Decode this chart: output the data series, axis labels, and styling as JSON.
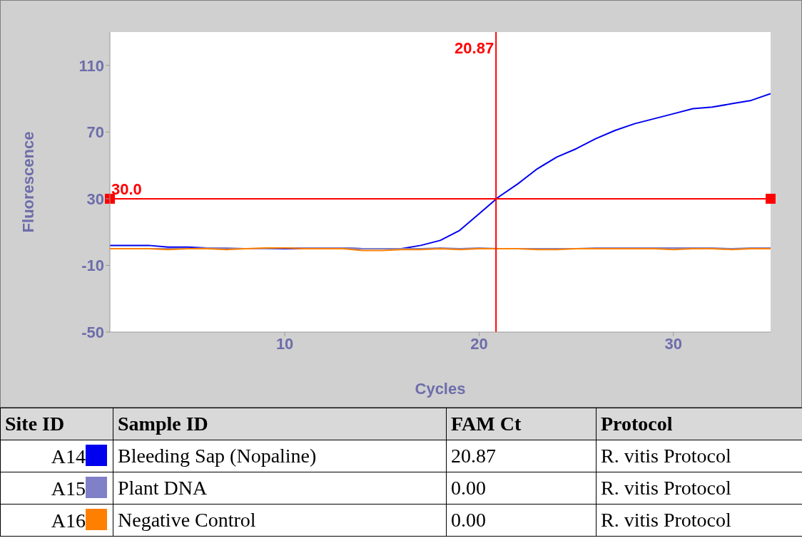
{
  "chart_data": {
    "type": "line",
    "xlabel": "Cycles",
    "ylabel": "Fluorescence",
    "x": [
      1,
      2,
      3,
      4,
      5,
      6,
      7,
      8,
      9,
      10,
      11,
      12,
      13,
      14,
      15,
      16,
      17,
      18,
      19,
      20,
      21,
      22,
      23,
      24,
      25,
      26,
      27,
      28,
      29,
      30,
      31,
      32,
      33,
      34,
      35
    ],
    "series": [
      {
        "name": "Bleeding Sap (Nopaline)",
        "color": "#0000ee",
        "values": [
          2,
          2,
          2,
          1,
          1,
          0.5,
          0,
          0,
          0,
          0,
          0,
          0.5,
          0.5,
          0,
          0,
          0,
          2,
          5,
          11,
          21,
          31,
          39,
          48,
          55,
          60,
          66,
          71,
          75,
          78,
          81,
          84,
          85,
          87,
          89,
          93
        ]
      },
      {
        "name": "Plant DNA",
        "color": "#8080c8",
        "values": [
          0,
          0,
          0,
          0,
          0,
          0.5,
          0.5,
          0,
          0,
          0.5,
          0.5,
          0.5,
          0.5,
          0,
          0,
          0,
          0,
          0.5,
          0,
          0.5,
          0,
          0,
          0,
          0,
          0,
          0.5,
          0.5,
          0.5,
          0.5,
          0.5,
          0.5,
          0.5,
          0,
          0.5,
          0.5
        ]
      },
      {
        "name": "Negative Control",
        "color": "#ff8000",
        "values": [
          0,
          0,
          0,
          -0.5,
          0,
          0,
          -0.5,
          0,
          0.5,
          0.5,
          0,
          0,
          0,
          -1,
          -1,
          -0.5,
          -0.5,
          0,
          -0.5,
          0,
          0,
          0,
          -0.5,
          -0.5,
          0,
          0,
          0,
          0,
          0,
          -0.5,
          0,
          0,
          -0.5,
          0,
          0
        ]
      }
    ],
    "xlim": [
      1,
      35
    ],
    "xticks": [
      10,
      20,
      30
    ],
    "ylim": [
      -50,
      130
    ],
    "yticks": [
      -50,
      -10,
      30,
      70,
      110
    ],
    "ref_lines": [
      {
        "axis": "y",
        "value": 30,
        "label": "30.0",
        "color": "#ff0000"
      },
      {
        "axis": "x",
        "value": 20.87,
        "label": "20.87",
        "color": "#ff0000"
      }
    ],
    "grid": false,
    "marker": "none",
    "line_style": "solid",
    "legend": "bottom",
    "annotations": [
      "Site ID",
      "Sample ID",
      "FAM Ct",
      "Protocol",
      "A14",
      "20.87",
      "R. vitis Protocol",
      "A15",
      "0.00",
      "R. vitis Protocol",
      "A16",
      "0.00",
      "R. vitis Protocol"
    ]
  }
}
